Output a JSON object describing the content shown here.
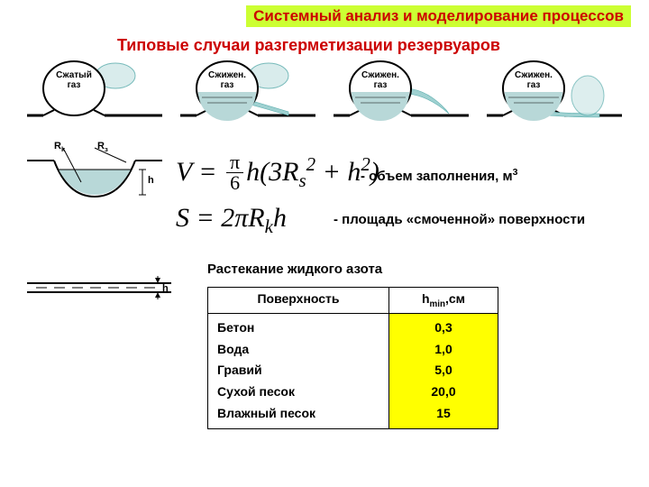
{
  "colors": {
    "highlight_bg": "#ccff33",
    "title_text": "#cc0000",
    "tank_outline": "#000000",
    "gas_cloud": "#d0e8e8",
    "liquid_fill": "#b8d8d8",
    "liquid_spill": "#9fd1d1",
    "ground": "#000000"
  },
  "header": "Системный анализ и моделирование процессов",
  "subtitle": "Типовые случаи разгерметизации резервуаров",
  "tanks": [
    {
      "label": "Сжатый газ",
      "liquid": false,
      "leak": "top"
    },
    {
      "label": "Сжижен. газ",
      "liquid": true,
      "leak": "top"
    },
    {
      "label": "Сжижен. газ",
      "liquid": true,
      "leak": "side"
    },
    {
      "label": "Сжижен. газ",
      "liquid": true,
      "leak": "bottom"
    }
  ],
  "crater": {
    "rk": "R",
    "rk_sub": "k",
    "rz": "R",
    "rz_sub": "з",
    "h": "h"
  },
  "formula_v": {
    "lhs": "V",
    "pi": "π",
    "den": "6",
    "body": "h(3R",
    "s_sub": "s",
    "tail": " + h",
    "sq": "2",
    ")": ")"
  },
  "formula_v_desc": "- объем заполнения, м",
  "formula_v_sup": "3",
  "formula_s": {
    "lhs": "S",
    "rhs": " = 2πR",
    "k": "k",
    "h": "h"
  },
  "formula_s_desc": "- площадь «смоченной» поверхности",
  "subhead": "Растекание жидкого азота",
  "film_label": "h",
  "table": {
    "head": [
      "Поверхность",
      "h"
    ],
    "head_sub": "min",
    "head_unit": ",см",
    "rows": [
      [
        "Бетон",
        "0,3"
      ],
      [
        "Вода",
        "1,0"
      ],
      [
        "Гравий",
        "5,0"
      ],
      [
        "Сухой песок",
        "20,0"
      ],
      [
        "Влажный песок",
        "15"
      ]
    ]
  }
}
